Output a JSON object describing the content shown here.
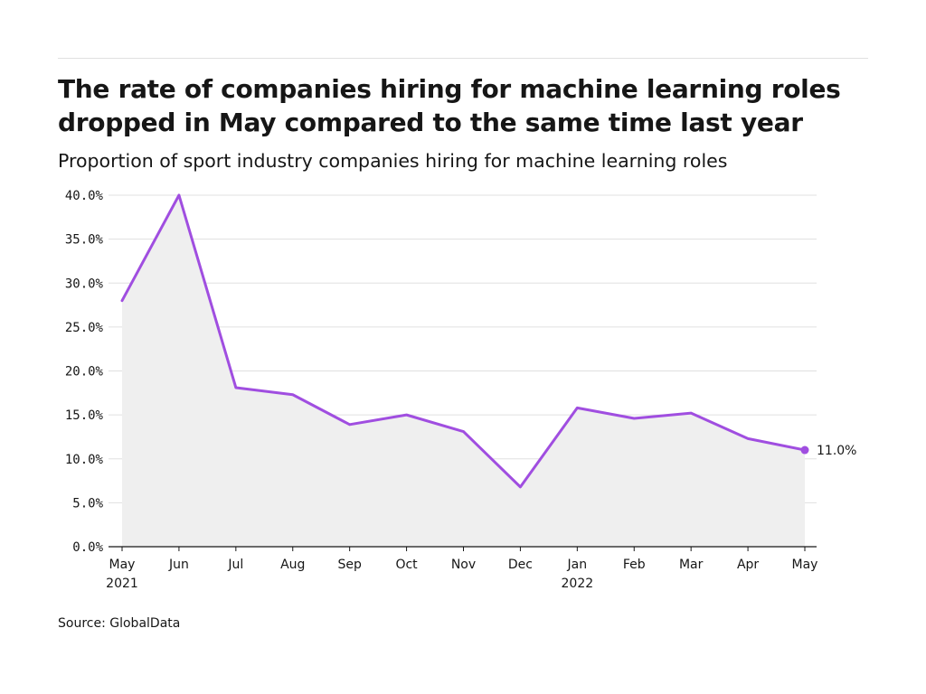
{
  "title": "The rate of companies hiring for machine learning roles dropped in May compared to the same time last year",
  "subtitle": "Proportion of sport industry companies hiring for machine learning roles",
  "source": "Source: GlobalData",
  "colors": {
    "line": "#a04ee0",
    "area": "#efefef",
    "grid": "#e0e0e0",
    "axis": "#161616"
  },
  "chart_data": {
    "type": "area",
    "title": "The rate of companies hiring for machine learning roles dropped in May compared to the same time last year",
    "subtitle": "Proportion of sport industry companies hiring for machine learning roles",
    "xlabel": "",
    "ylabel": "",
    "x": [
      "2021-05",
      "2021-06",
      "2021-07",
      "2021-08",
      "2021-09",
      "2021-10",
      "2021-11",
      "2021-12",
      "2022-01",
      "2022-02",
      "2022-03",
      "2022-04",
      "2022-05"
    ],
    "x_tick_labels": [
      {
        "month": "May",
        "year": "2021"
      },
      {
        "month": "Jun",
        "year": ""
      },
      {
        "month": "Jul",
        "year": ""
      },
      {
        "month": "Aug",
        "year": ""
      },
      {
        "month": "Sep",
        "year": ""
      },
      {
        "month": "Oct",
        "year": ""
      },
      {
        "month": "Nov",
        "year": ""
      },
      {
        "month": "Dec",
        "year": ""
      },
      {
        "month": "Jan",
        "year": "2022"
      },
      {
        "month": "Feb",
        "year": ""
      },
      {
        "month": "Mar",
        "year": ""
      },
      {
        "month": "Apr",
        "year": ""
      },
      {
        "month": "May",
        "year": ""
      }
    ],
    "series": [
      {
        "values": [
          28.0,
          40.0,
          18.1,
          17.3,
          13.9,
          15.0,
          13.1,
          6.8,
          15.8,
          14.6,
          15.2,
          12.3,
          11.0
        ]
      }
    ],
    "ylim": [
      0,
      40
    ],
    "y_ticks": [
      0,
      5,
      10,
      15,
      20,
      25,
      30,
      35,
      40
    ],
    "y_tick_labels": [
      "0.0%",
      "5.0%",
      "10.0%",
      "15.0%",
      "20.0%",
      "25.0%",
      "30.0%",
      "35.0%",
      "40.0%"
    ],
    "end_label": "11.0%",
    "grid": true,
    "legend": "none"
  }
}
